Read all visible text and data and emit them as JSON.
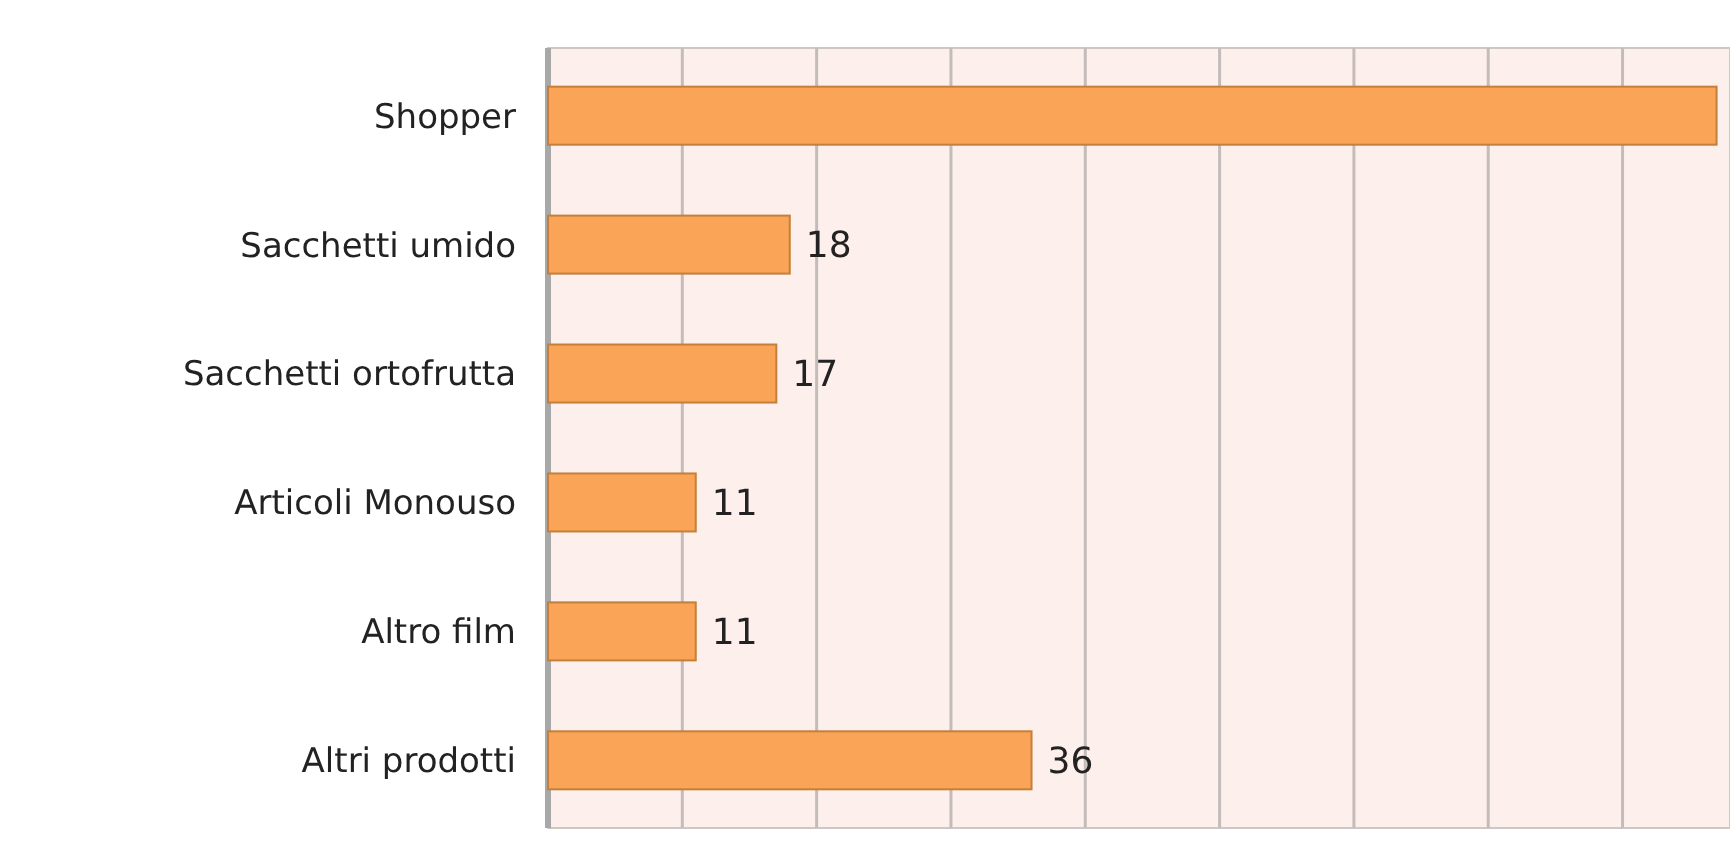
{
  "chart_data": {
    "type": "bar",
    "orientation": "horizontal",
    "categories": [
      "Shopper",
      "Sacchetti umido",
      "Sacchetti ortofrutta",
      "Articoli Monouso",
      "Altro film",
      "Altri prodotti"
    ],
    "values": [
      87,
      18,
      17,
      11,
      11,
      36
    ],
    "value_labels": [
      null,
      "18",
      "17",
      "11",
      "11",
      "36"
    ],
    "color": "#f9a456",
    "xlim": [
      0,
      88
    ],
    "xticks": [
      {
        "value": 0,
        "label": null
      },
      {
        "value": 10,
        "label": null
      },
      {
        "value": 20,
        "label": null
      },
      {
        "value": 30,
        "label": null
      },
      {
        "value": 40,
        "label": null
      },
      {
        "value": 50,
        "label": null
      },
      {
        "value": 60,
        "label": null
      },
      {
        "value": 70,
        "label": null
      },
      {
        "value": 80,
        "label": null
      }
    ],
    "grid": "x",
    "tick_labels": "y"
  }
}
